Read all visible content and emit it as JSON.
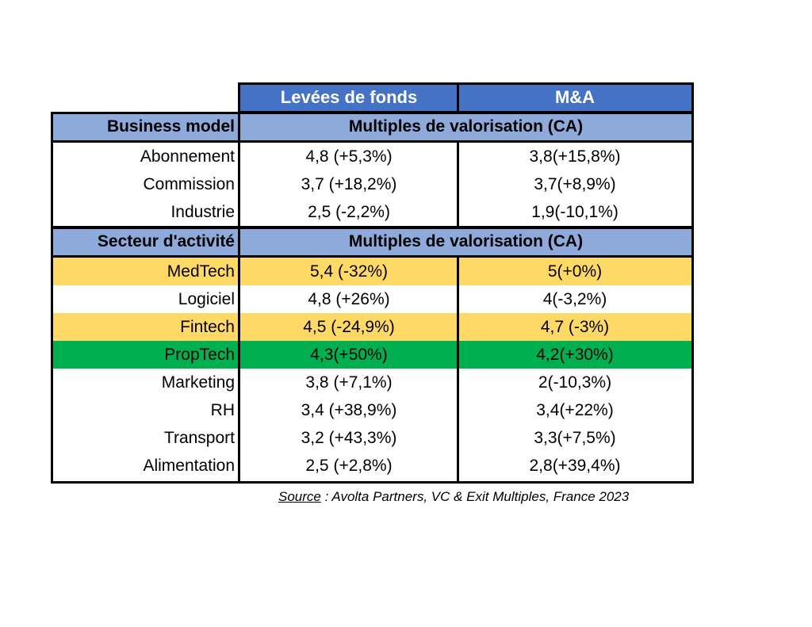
{
  "header": {
    "col_funding": "Levées de fonds",
    "col_ma": "M&A"
  },
  "section1": {
    "label": "Business model",
    "title": "Multiples de valorisation (CA)",
    "rows": [
      {
        "name": "Abonnement",
        "funding": "4,8 (+5,3%)",
        "ma": "3,8(+15,8%)",
        "highlight": "none"
      },
      {
        "name": "Commission",
        "funding": "3,7 (+18,2%)",
        "ma": "3,7(+8,9%)",
        "highlight": "none"
      },
      {
        "name": "Industrie",
        "funding": "2,5 (-2,2%)",
        "ma": "1,9(-10,1%)",
        "highlight": "none"
      }
    ]
  },
  "section2": {
    "label": "Secteur d'activité",
    "title": "Multiples de valorisation (CA)",
    "rows": [
      {
        "name": "MedTech",
        "funding": "5,4 (-32%)",
        "ma": "5(+0%)",
        "highlight": "yellow"
      },
      {
        "name": "Logiciel",
        "funding": "4,8 (+26%)",
        "ma": "4(-3,2%)",
        "highlight": "none"
      },
      {
        "name": "Fintech",
        "funding": "4,5 (-24,9%)",
        "ma": "4,7 (-3%)",
        "highlight": "yellow"
      },
      {
        "name": "PropTech",
        "funding": "4,3(+50%)",
        "ma": "4,2(+30%)",
        "highlight": "green"
      },
      {
        "name": "Marketing",
        "funding": "3,8 (+7,1%)",
        "ma": "2(-10,3%)",
        "highlight": "none"
      },
      {
        "name": "RH",
        "funding": "3,4 (+38,9%)",
        "ma": "3,4(+22%)",
        "highlight": "none"
      },
      {
        "name": "Transport",
        "funding": "3,2 (+43,3%)",
        "ma": "3,3(+7,5%)",
        "highlight": "none"
      },
      {
        "name": "Alimentation",
        "funding": "2,5 (+2,8%)",
        "ma": "2,8(+39,4%)",
        "highlight": "none"
      }
    ]
  },
  "source": {
    "label": "Source",
    "text": " : Avolta Partners, VC & Exit Multiples, France 2023"
  },
  "colors": {
    "header_blue": "#4472c4",
    "section_blue": "#8eaadb",
    "yellow": "#ffd966",
    "green": "#00b050"
  }
}
